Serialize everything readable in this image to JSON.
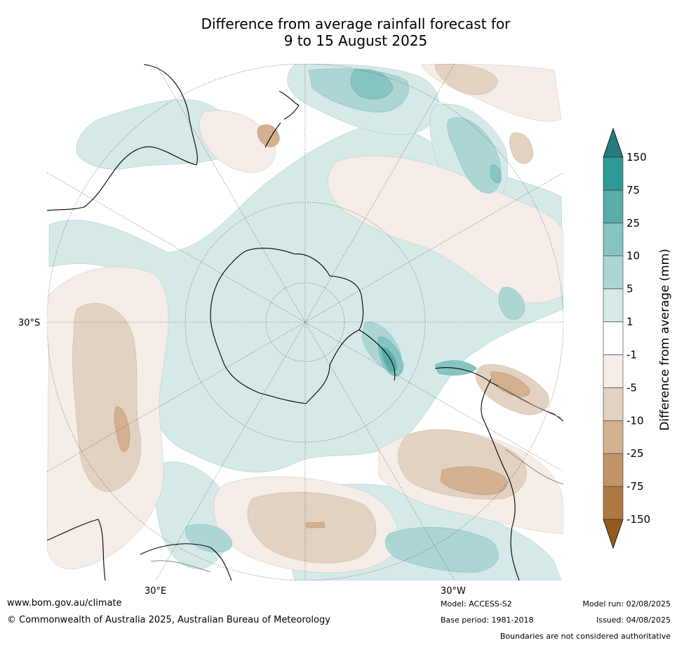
{
  "title": {
    "line1": "Difference from average rainfall forecast for",
    "line2": "9 to 15 August 2025"
  },
  "map": {
    "projection": "south-polar-stereographic",
    "lat_label": "30°S",
    "lon_labels": [
      "30°E",
      "30°W"
    ]
  },
  "colorbar": {
    "label": "Difference from average (mm)",
    "ticks": [
      "150",
      "75",
      "25",
      "10",
      "5",
      "1",
      "-1",
      "-5",
      "-10",
      "-25",
      "-75",
      "-150"
    ],
    "bands": [
      {
        "range": "-150 to -75",
        "color": "#ae7843"
      },
      {
        "range": "-75 to -25",
        "color": "#c19467"
      },
      {
        "range": "-25 to -10",
        "color": "#d2b090"
      },
      {
        "range": "-10 to -5",
        "color": "#e3d2c1"
      },
      {
        "range": "-5 to -1",
        "color": "#f4ede8"
      },
      {
        "range": "-1 to 1",
        "color": "#ffffff"
      },
      {
        "range": "1 to 5",
        "color": "#d4e9e8"
      },
      {
        "range": "5 to 10",
        "color": "#acd6d4"
      },
      {
        "range": "10 to 25",
        "color": "#86c4c1"
      },
      {
        "range": "25 to 75",
        "color": "#5aacaa"
      },
      {
        "range": "75 to 150",
        "color": "#2f9996"
      }
    ],
    "extend_low_color": "#925b21",
    "extend_high_color": "#267c7c"
  },
  "footer": {
    "website": "www.bom.gov.au/climate",
    "copyright": "© Commonwealth of Australia 2025, Australian Bureau of Meteorology",
    "model": "Model: ACCESS-S2",
    "base_period": "Base period: 1981-2018",
    "model_run": "Model run: 02/08/2025",
    "issued": "Issued: 04/08/2025",
    "disclaimer": "Boundaries are not considered authoritative"
  }
}
